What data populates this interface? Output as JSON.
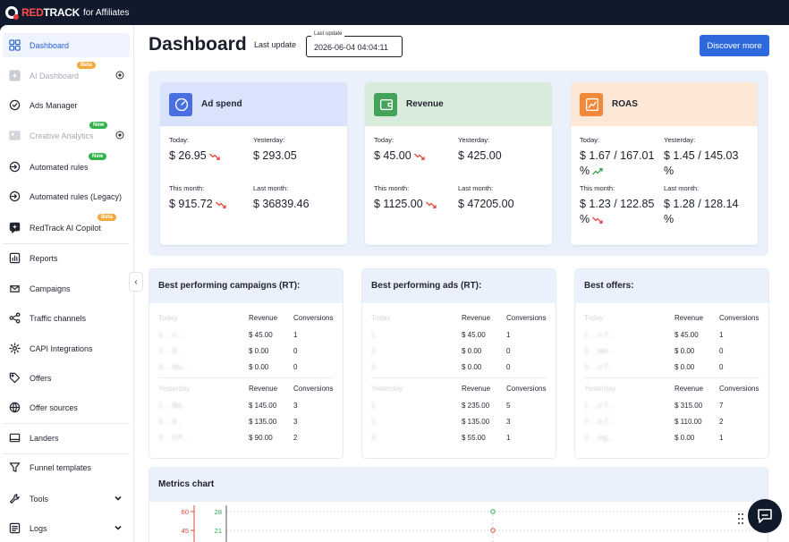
{
  "brand": {
    "red": "RED",
    "white": "TRACK",
    "suffix": "for Affiliates"
  },
  "sidebar": {
    "items": [
      {
        "label": "Dashboard",
        "icon": "grid-icon",
        "state": "active"
      },
      {
        "label": "AI Dashboard",
        "icon": "ai-dashboard-icon",
        "state": "disabled",
        "badge": "Beta"
      },
      {
        "label": "Ads Manager",
        "icon": "check-circle-icon",
        "state": "normal"
      },
      {
        "label": "Creative Analytics",
        "icon": "creative-icon",
        "state": "disabled",
        "badge": "New"
      },
      {
        "label": "Automated rules",
        "icon": "automation-icon",
        "state": "normal",
        "badge": "New"
      },
      {
        "label": "Automated rules (Legacy)",
        "icon": "automation-legacy-icon",
        "state": "normal"
      },
      {
        "label": "RedTrack AI Copilot",
        "icon": "copilot-icon",
        "state": "normal",
        "badge": "Beta"
      },
      {
        "label": "Reports",
        "icon": "reports-icon",
        "state": "normal"
      },
      {
        "label": "Campaigns",
        "icon": "campaigns-icon",
        "state": "normal"
      },
      {
        "label": "Traffic channels",
        "icon": "share-icon",
        "state": "normal"
      },
      {
        "label": "CAPI Integrations",
        "icon": "gear-icon",
        "state": "normal"
      },
      {
        "label": "Offers",
        "icon": "tag-icon",
        "state": "normal"
      },
      {
        "label": "Offer sources",
        "icon": "globe-icon",
        "state": "normal"
      },
      {
        "label": "Landers",
        "icon": "landers-icon",
        "state": "normal"
      },
      {
        "label": "Funnel templates",
        "icon": "funnel-icon",
        "state": "normal"
      },
      {
        "label": "Tools",
        "icon": "wrench-icon",
        "state": "normal"
      },
      {
        "label": "Logs",
        "icon": "logs-icon",
        "state": "normal"
      }
    ]
  },
  "header": {
    "title": "Dashboard",
    "last_update_label": "Last update",
    "last_update_legend": "Last update",
    "last_update_value": "2026-06-04 04:04:11",
    "discover_label": "Discover more"
  },
  "kpis": [
    {
      "title": "Ad spend",
      "icon": "gauge-icon",
      "color": "#4a6fe0",
      "head_bg": "#d9e3fb",
      "today_label": "Today:",
      "today": "$ 26.95",
      "today_trend": "down",
      "yesterday_label": "Yesterday:",
      "yesterday": "$ 293.05",
      "month_label": "This month:",
      "month": "$ 915.72",
      "month_trend": "down",
      "last_month_label": "Last month:",
      "last_month": "$ 36839.46"
    },
    {
      "title": "Revenue",
      "icon": "wallet-icon",
      "color": "#44a35a",
      "head_bg": "#d8ecdc",
      "today_label": "Today:",
      "today": "$ 45.00",
      "today_trend": "down",
      "yesterday_label": "Yesterday:",
      "yesterday": "$ 425.00",
      "month_label": "This month:",
      "month": "$ 1125.00",
      "month_trend": "down",
      "last_month_label": "Last month:",
      "last_month": "$ 47205.00"
    },
    {
      "title": "ROAS",
      "icon": "chart-line-icon",
      "color": "#f1893b",
      "head_bg": "#fde7d6",
      "today_label": "Today:",
      "today": "$ 1.67 / 167.01 %",
      "today_trend": "up",
      "yesterday_label": "Yesterday:",
      "yesterday": "$ 1.45 / 145.03 %",
      "month_label": "This month:",
      "month": "$ 1.23 / 122.85 %",
      "month_trend": "down",
      "last_month_label": "Last month:",
      "last_month": "$ 1.28 / 128.14 %"
    }
  ],
  "panels": [
    {
      "title": "Best performing campaigns (RT):",
      "today_header": "Today",
      "revenue_header": "Revenue",
      "conversions_header": "Conversions",
      "today_rows": [
        {
          "name": "1. ...C...",
          "revenue": "$ 45.00",
          "conversions": "1"
        },
        {
          "name": "2. ...8...",
          "revenue": "$ 0.00",
          "conversions": "0"
        },
        {
          "name": "3. ...Mu...",
          "revenue": "$ 0.00",
          "conversions": "0"
        }
      ],
      "yesterday_header": "Yesterday",
      "yesterday_rows": [
        {
          "name": "1. ...Bd...",
          "revenue": "$ 145.00",
          "conversions": "3"
        },
        {
          "name": "2. ...8...",
          "revenue": "$ 135.00",
          "conversions": "3"
        },
        {
          "name": "3. ...CP...",
          "revenue": "$ 90.00",
          "conversions": "2"
        }
      ]
    },
    {
      "title": "Best performing ads (RT):",
      "today_header": "Today",
      "revenue_header": "Revenue",
      "conversions_header": "Conversions",
      "today_rows": [
        {
          "name": "1.",
          "revenue": "$ 45.00",
          "conversions": "1"
        },
        {
          "name": "2.",
          "revenue": "$ 0.00",
          "conversions": "0"
        },
        {
          "name": "3.",
          "revenue": "$ 0.00",
          "conversions": "0"
        }
      ],
      "yesterday_header": "Yesterday",
      "yesterday_rows": [
        {
          "name": "1.",
          "revenue": "$ 235.00",
          "conversions": "5"
        },
        {
          "name": "2.",
          "revenue": "$ 135.00",
          "conversions": "3"
        },
        {
          "name": "3.",
          "revenue": "$ 55.00",
          "conversions": "1"
        }
      ]
    },
    {
      "title": "Best offers:",
      "today_header": "Today",
      "revenue_header": "Revenue",
      "conversions_header": "Conversions",
      "today_rows": [
        {
          "name": "1. ...n T...",
          "revenue": "$ 45.00",
          "conversions": "1"
        },
        {
          "name": "2. ...ate...",
          "revenue": "$ 0.00",
          "conversions": "0"
        },
        {
          "name": "3. ...n T...",
          "revenue": "$ 0.00",
          "conversions": "0"
        }
      ],
      "yesterday_header": "Yesterday",
      "yesterday_rows": [
        {
          "name": "1. ...n T...",
          "revenue": "$ 315.00",
          "conversions": "7"
        },
        {
          "name": "2. ...n T...",
          "revenue": "$ 110.00",
          "conversions": "2"
        },
        {
          "name": "3. ...ing...",
          "revenue": "$ 0.00",
          "conversions": "1"
        }
      ]
    }
  ],
  "metrics": {
    "title": "Metrics chart",
    "left_ticks": [
      "60",
      "45"
    ],
    "right_ticks": [
      "28",
      "21"
    ],
    "left_color": "#e2453c",
    "right_color": "#2fa34a"
  }
}
